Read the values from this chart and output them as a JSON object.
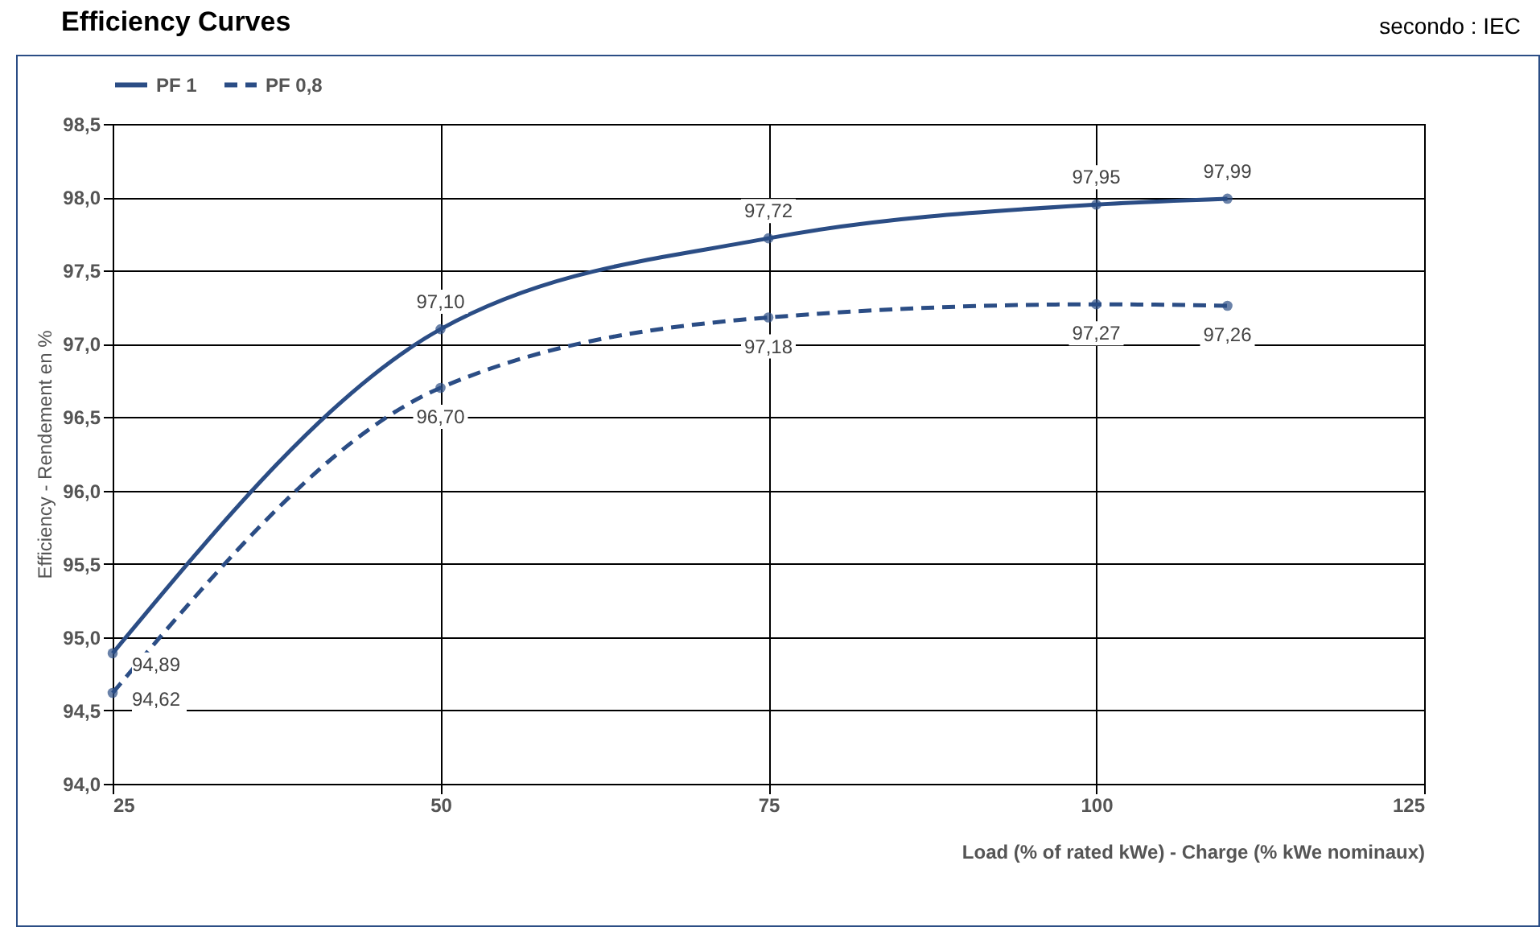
{
  "chart_data": {
    "type": "line",
    "title": "Efficiency Curves",
    "annotations": [
      "secondo : IEC"
    ],
    "xlabel": "Load  (% of rated kWe) - Charge  (% kWe nominaux)",
    "ylabel": "Efficiency - Rendement en %",
    "x": [
      25,
      50,
      75,
      100,
      110
    ],
    "series": [
      {
        "name": "PF 1",
        "color": "#2b4d85",
        "line_style": "solid",
        "values": [
          94.89,
          97.1,
          97.72,
          97.95,
          97.99
        ],
        "value_labels": [
          "94,89",
          "97,10",
          "97,72",
          "97,95",
          "97,99"
        ]
      },
      {
        "name": "PF 0,8",
        "color": "#2b4d85",
        "line_style": "dashed",
        "values": [
          94.62,
          96.7,
          97.18,
          97.27,
          97.26
        ],
        "value_labels": [
          "94,62",
          "96,70",
          "97,18",
          "97,27",
          "97,26"
        ]
      }
    ],
    "xlim": [
      25,
      125
    ],
    "xticks": [
      25,
      50,
      75,
      100,
      125
    ],
    "ylim": [
      94.0,
      98.5
    ],
    "yticks": [
      {
        "value": 94.0,
        "label": "94,0"
      },
      {
        "value": 94.5,
        "label": "94,5"
      },
      {
        "value": 95.0,
        "label": "95,0"
      },
      {
        "value": 95.5,
        "label": "95,5"
      },
      {
        "value": 96.0,
        "label": "96,0"
      },
      {
        "value": 96.5,
        "label": "96,5"
      },
      {
        "value": 97.0,
        "label": "97,0"
      },
      {
        "value": 97.5,
        "label": "97,5"
      },
      {
        "value": 98.0,
        "label": "98,0"
      },
      {
        "value": 98.5,
        "label": "98,5"
      }
    ],
    "grid": true,
    "legend": "top left",
    "marker": "circle"
  }
}
